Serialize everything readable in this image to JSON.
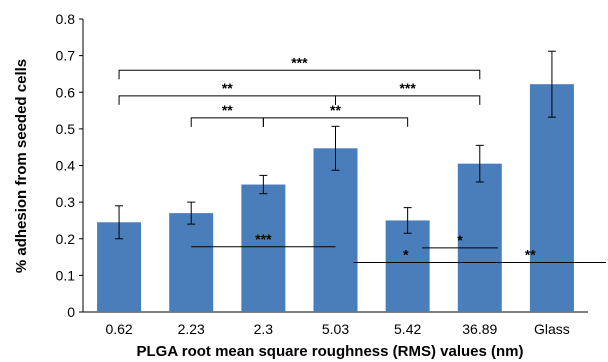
{
  "chart_data": {
    "type": "bar",
    "title": "",
    "xlabel": "PLGA root mean square roughness (RMS) values (nm)",
    "ylabel": "% adhesion from seeded cells",
    "categories": [
      "0.62",
      "2.23",
      "2.3",
      "5.03",
      "5.42",
      "36.89",
      "Glass"
    ],
    "values": [
      0.245,
      0.27,
      0.348,
      0.447,
      0.25,
      0.405,
      0.622
    ],
    "error": [
      0.045,
      0.03,
      0.025,
      0.06,
      0.035,
      0.05,
      0.09
    ],
    "ylim": [
      0,
      0.8
    ],
    "yticks": [
      "0",
      "0.1",
      "0.2",
      "0.3",
      "0.4",
      "0.5",
      "0.6",
      "0.7",
      "0.8"
    ],
    "bar_color": "#4a7ebb",
    "grid": false,
    "significance": {
      "brackets": [
        {
          "from": 0,
          "to": 5,
          "y": 0.66,
          "label": "***"
        },
        {
          "from": 0,
          "to": 3,
          "y": 0.59,
          "label": "**"
        },
        {
          "from": 3,
          "to": 5,
          "y": 0.59,
          "label": "***"
        },
        {
          "from": 1,
          "to": 2,
          "y": 0.53,
          "label": "**"
        },
        {
          "from": 2,
          "to": 4,
          "y": 0.53,
          "label": "**"
        }
      ],
      "lines": [
        {
          "from": 1,
          "to": 3,
          "y": 0.178,
          "label": "***"
        },
        {
          "from": 3.25,
          "to": 4.7,
          "y": 0.135,
          "label": "*"
        },
        {
          "from": 4.2,
          "to": 5.25,
          "y": 0.175,
          "label": "*"
        },
        {
          "from": 4.65,
          "to": 6.75,
          "y": 0.135,
          "label": "**"
        }
      ]
    }
  }
}
